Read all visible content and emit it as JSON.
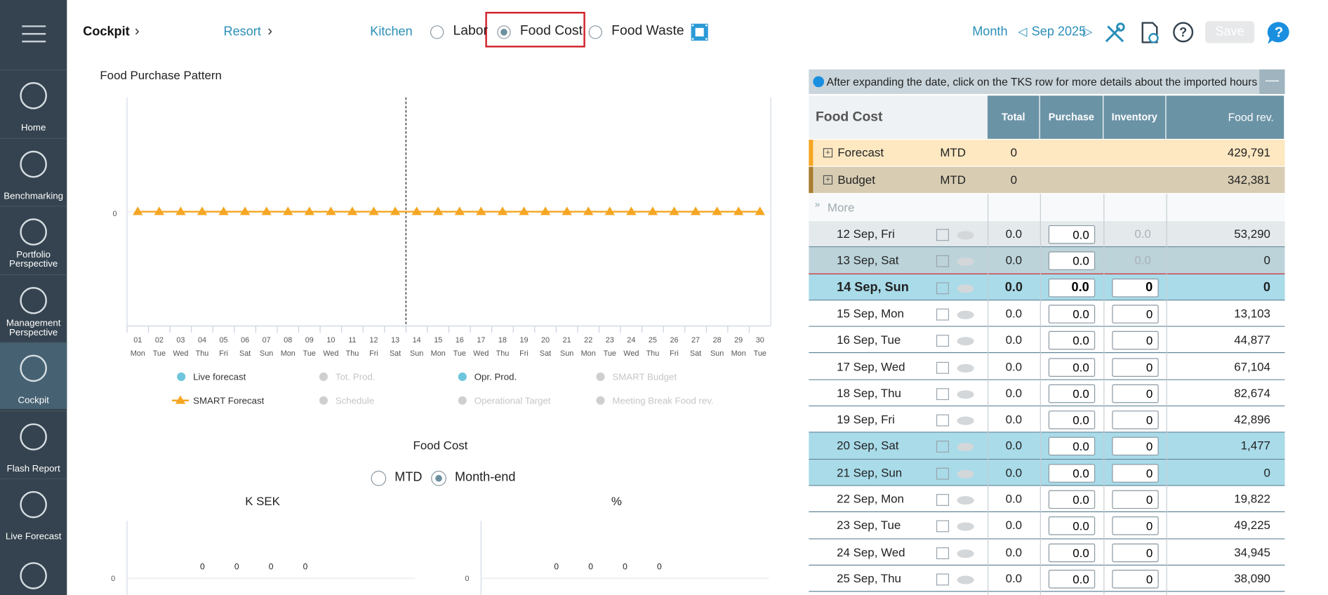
{
  "sidebar": {
    "items": [
      "Home",
      "Benchmarking",
      "Portfolio Perspective",
      "Management Perspective",
      "Cockpit",
      "Flash Report",
      "Live Forecast"
    ],
    "active": "Cockpit"
  },
  "topbar": {
    "breadcrumb": [
      "Cockpit",
      "Resort"
    ],
    "unit": "Kitchen",
    "options": [
      {
        "label": "Labor",
        "selected": false
      },
      {
        "label": "Food Cost",
        "selected": true
      },
      {
        "label": "Food Waste",
        "selected": false
      }
    ],
    "period": "Month",
    "month": "Sep 2025",
    "save": "Save"
  },
  "pattern_chart": {
    "type": "line",
    "title": "Food Purchase Pattern",
    "x": [
      "01",
      "02",
      "03",
      "04",
      "05",
      "06",
      "07",
      "08",
      "09",
      "10",
      "11",
      "12",
      "13",
      "14",
      "15",
      "16",
      "17",
      "18",
      "19",
      "20",
      "21",
      "22",
      "23",
      "24",
      "25",
      "26",
      "27",
      "28",
      "29",
      "30"
    ],
    "x_sublabels": [
      "Mon",
      "Tue",
      "Wed",
      "Thu",
      "Fri",
      "Sat",
      "Sun",
      "Mon",
      "Tue",
      "Wed",
      "Thu",
      "Fri",
      "Sat",
      "Sun",
      "Mon",
      "Tue",
      "Wed",
      "Thu",
      "Fri",
      "Sat",
      "Sun",
      "Mon",
      "Tue",
      "Wed",
      "Thu",
      "Fri",
      "Sat",
      "Sun",
      "Mon",
      "Tue"
    ],
    "today": "14",
    "ylim": [
      -1,
      1
    ],
    "yticks": [
      0
    ],
    "series": [
      {
        "name": "SMART Forecast",
        "color": "#f5a623",
        "values": [
          0,
          0,
          0,
          0,
          0,
          0,
          0,
          0,
          0,
          0,
          0,
          0,
          0,
          0,
          0,
          0,
          0,
          0,
          0,
          0,
          0,
          0,
          0,
          0,
          0,
          0,
          0,
          0,
          0,
          0
        ]
      }
    ],
    "legend": [
      {
        "name": "Live forecast",
        "color": "#6ec6dc",
        "active": true
      },
      {
        "name": "Tot. Prod.",
        "color": "#cfcfcf",
        "active": false
      },
      {
        "name": "Opr. Prod.",
        "color": "#6ec6dc",
        "active": true
      },
      {
        "name": "SMART Budget",
        "color": "#cfcfcf",
        "active": false
      },
      {
        "name": "Schedule",
        "color": "#cfcfcf",
        "active": false
      },
      {
        "name": "Operational Target",
        "color": "#cfcfcf",
        "active": false
      },
      {
        "name": "Meeting Break Food rev.",
        "color": "#cfcfcf",
        "active": false
      }
    ]
  },
  "food_cost": {
    "title": "Food Cost",
    "options": [
      {
        "label": "MTD",
        "selected": false
      },
      {
        "label": "Month-end",
        "selected": true
      }
    ],
    "charts": [
      {
        "type": "bar",
        "title": "K SEK",
        "categories": [
          null,
          null,
          null,
          null
        ],
        "values": [
          0,
          0,
          0,
          0
        ],
        "ylim": [
          -1,
          1
        ],
        "yticks": [
          0
        ]
      },
      {
        "type": "bar",
        "title": "%",
        "categories": [
          null,
          null,
          null,
          null
        ],
        "values": [
          0,
          0,
          0,
          0
        ],
        "ylim": [
          -1,
          1
        ],
        "yticks": [
          0
        ]
      }
    ]
  },
  "table": {
    "note": "After expanding the date, click on the TKS row for more details about the imported hours",
    "headers": [
      "Food Cost",
      "Total",
      "Purchase",
      "Inventory",
      "Food rev."
    ],
    "summary_rows": [
      {
        "label": "Forecast",
        "period": "MTD",
        "total": "0",
        "food_rev": "429,791",
        "background": "#fde8c2",
        "accent": "#f5a623"
      },
      {
        "label": "Budget",
        "period": "MTD",
        "total": "0",
        "food_rev": "342,381",
        "background": "#d8cdb3",
        "accent": "#a87d2e"
      }
    ],
    "more": "More",
    "rows": [
      {
        "date": "12 Sep, Fri",
        "total": "0.0",
        "purchase": "0.0",
        "inventory": "0.0",
        "food_rev": "53,290",
        "locked": true,
        "background": "#e4e9ec",
        "bold": false
      },
      {
        "date": "13 Sep, Sat",
        "total": "0.0",
        "purchase": "0.0",
        "inventory": "0.0",
        "food_rev": "0",
        "locked": true,
        "background": "#bcd3da",
        "bold": false
      },
      {
        "date": "14 Sep, Sun",
        "total": "0.0",
        "purchase": "0.0",
        "inventory": "0",
        "food_rev": "0",
        "locked": false,
        "background": "#a9dbe9",
        "bold": true
      },
      {
        "date": "15 Sep, Mon",
        "total": "0.0",
        "purchase": "0.0",
        "inventory": "0",
        "food_rev": "13,103",
        "locked": false,
        "background": "#ffffff",
        "bold": false
      },
      {
        "date": "16 Sep, Tue",
        "total": "0.0",
        "purchase": "0.0",
        "inventory": "0",
        "food_rev": "44,877",
        "locked": false,
        "background": "#ffffff",
        "bold": false
      },
      {
        "date": "17 Sep, Wed",
        "total": "0.0",
        "purchase": "0.0",
        "inventory": "0",
        "food_rev": "67,104",
        "locked": false,
        "background": "#ffffff",
        "bold": false
      },
      {
        "date": "18 Sep, Thu",
        "total": "0.0",
        "purchase": "0.0",
        "inventory": "0",
        "food_rev": "82,674",
        "locked": false,
        "background": "#ffffff",
        "bold": false
      },
      {
        "date": "19 Sep, Fri",
        "total": "0.0",
        "purchase": "0.0",
        "inventory": "0",
        "food_rev": "42,896",
        "locked": false,
        "background": "#ffffff",
        "bold": false
      },
      {
        "date": "20 Sep, Sat",
        "total": "0.0",
        "purchase": "0.0",
        "inventory": "0",
        "food_rev": "1,477",
        "locked": false,
        "background": "#a9dbe9",
        "bold": false
      },
      {
        "date": "21 Sep, Sun",
        "total": "0.0",
        "purchase": "0.0",
        "inventory": "0",
        "food_rev": "0",
        "locked": false,
        "background": "#a9dbe9",
        "bold": false
      },
      {
        "date": "22 Sep, Mon",
        "total": "0.0",
        "purchase": "0.0",
        "inventory": "0",
        "food_rev": "19,822",
        "locked": false,
        "background": "#ffffff",
        "bold": false
      },
      {
        "date": "23 Sep, Tue",
        "total": "0.0",
        "purchase": "0.0",
        "inventory": "0",
        "food_rev": "49,225",
        "locked": false,
        "background": "#ffffff",
        "bold": false
      },
      {
        "date": "24 Sep, Wed",
        "total": "0.0",
        "purchase": "0.0",
        "inventory": "0",
        "food_rev": "34,945",
        "locked": false,
        "background": "#ffffff",
        "bold": false
      },
      {
        "date": "25 Sep, Thu",
        "total": "0.0",
        "purchase": "0.0",
        "inventory": "0",
        "food_rev": "38,090",
        "locked": false,
        "background": "#ffffff",
        "bold": false
      }
    ]
  }
}
